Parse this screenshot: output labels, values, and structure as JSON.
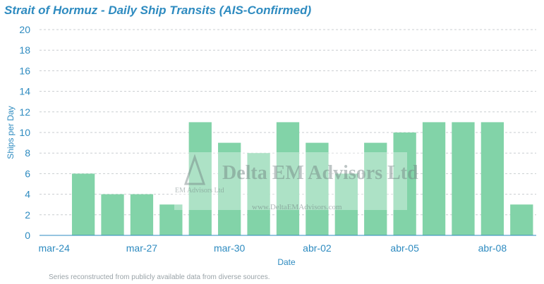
{
  "chart_data": {
    "type": "bar",
    "title": "Strait of Hormuz - Daily Ship Transits (AIS-Confirmed)",
    "xlabel": "Date",
    "ylabel": "Ships per Day",
    "ylim": [
      0,
      20
    ],
    "yticks": [
      0,
      2,
      4,
      6,
      8,
      10,
      12,
      14,
      16,
      18,
      20
    ],
    "grid": "horizontal dashed",
    "categories": [
      "mar-24",
      "mar-25",
      "mar-26",
      "mar-27",
      "mar-28",
      "mar-29",
      "mar-30",
      "mar-31",
      "abr-01",
      "abr-02",
      "abr-03",
      "abr-04",
      "abr-05",
      "abr-06",
      "abr-07",
      "abr-08",
      "abr-09"
    ],
    "xtick_labels": [
      "mar-24",
      "mar-27",
      "mar-30",
      "abr-02",
      "abr-05",
      "abr-08"
    ],
    "values": [
      0,
      6,
      4,
      4,
      3,
      11,
      9,
      8,
      11,
      9,
      6,
      9,
      10,
      11,
      11,
      11,
      3
    ],
    "bar_color": "#82d3a8",
    "text_color": "#2e8bc0",
    "footnote": "Series reconstructed from publicly available data from diverse sources."
  },
  "watermark": {
    "name": "Delta EM Advisors Ltd",
    "small": "EM Advisors Ltd",
    "url": "www.DeltaEMAdvisors.com"
  }
}
